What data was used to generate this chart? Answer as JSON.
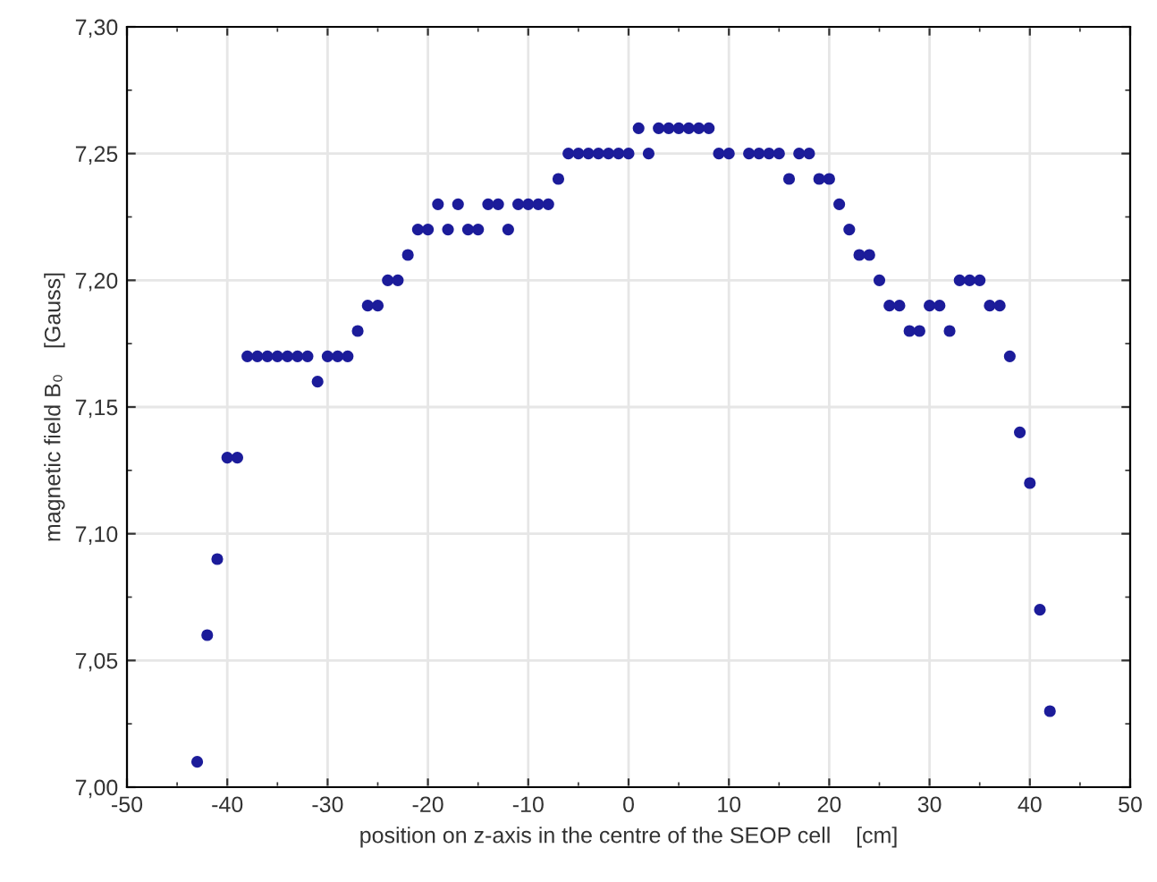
{
  "chart_data": {
    "type": "scatter",
    "xlabel": "position on z-axis in the centre of the SEOP cell    [cm]",
    "ylabel": "magnetic field B₀    [Gauss]",
    "x": [
      -43,
      -42,
      -41,
      -40,
      -39,
      -38,
      -37,
      -36,
      -35,
      -34,
      -33,
      -32,
      -31,
      -30,
      -29,
      -28,
      -27,
      -26,
      -25,
      -24,
      -23,
      -22,
      -21,
      -20,
      -19,
      -18,
      -17,
      -16,
      -15,
      -14,
      -13,
      -12,
      -11,
      -10,
      -9,
      -8,
      -7,
      -6,
      -5,
      -4,
      -3,
      -2,
      -1,
      0,
      1,
      2,
      3,
      4,
      5,
      6,
      7,
      8,
      9,
      10,
      12,
      13,
      14,
      15,
      16,
      17,
      18,
      19,
      20,
      21,
      22,
      23,
      24,
      25,
      26,
      27,
      28,
      29,
      30,
      31,
      32,
      33,
      34,
      35,
      36,
      37,
      38,
      39,
      40,
      41,
      42
    ],
    "series": [
      {
        "color": "#1c1c9a",
        "values": [
          7.01,
          7.06,
          7.09,
          7.13,
          7.13,
          7.17,
          7.17,
          7.17,
          7.17,
          7.17,
          7.17,
          7.17,
          7.16,
          7.17,
          7.17,
          7.17,
          7.18,
          7.19,
          7.19,
          7.2,
          7.2,
          7.21,
          7.22,
          7.22,
          7.23,
          7.22,
          7.23,
          7.22,
          7.22,
          7.23,
          7.23,
          7.22,
          7.23,
          7.23,
          7.23,
          7.23,
          7.24,
          7.25,
          7.25,
          7.25,
          7.25,
          7.25,
          7.25,
          7.25,
          7.26,
          7.25,
          7.26,
          7.26,
          7.26,
          7.26,
          7.26,
          7.26,
          7.25,
          7.25,
          7.25,
          7.25,
          7.25,
          7.25,
          7.24,
          7.25,
          7.25,
          7.24,
          7.24,
          7.23,
          7.22,
          7.21,
          7.21,
          7.2,
          7.19,
          7.19,
          7.18,
          7.18,
          7.19,
          7.19,
          7.18,
          7.2,
          7.2,
          7.2,
          7.19,
          7.19,
          7.17,
          7.14,
          7.12,
          7.07,
          7.03
        ]
      }
    ],
    "xlim": [
      -50,
      50
    ],
    "xticks": [
      -50,
      -40,
      -30,
      -20,
      -10,
      0,
      10,
      20,
      30,
      40,
      50
    ],
    "ylim": [
      7.0,
      7.3
    ],
    "yticks": [
      {
        "value": 7.0,
        "label": "7,00"
      },
      {
        "value": 7.05,
        "label": "7,05"
      },
      {
        "value": 7.1,
        "label": "7,10"
      },
      {
        "value": 7.15,
        "label": "7,15"
      },
      {
        "value": 7.2,
        "label": "7,20"
      },
      {
        "value": 7.25,
        "label": "7,25"
      },
      {
        "value": 7.3,
        "label": "7,30"
      }
    ],
    "grid": true,
    "marker": "circle",
    "legend": false
  }
}
